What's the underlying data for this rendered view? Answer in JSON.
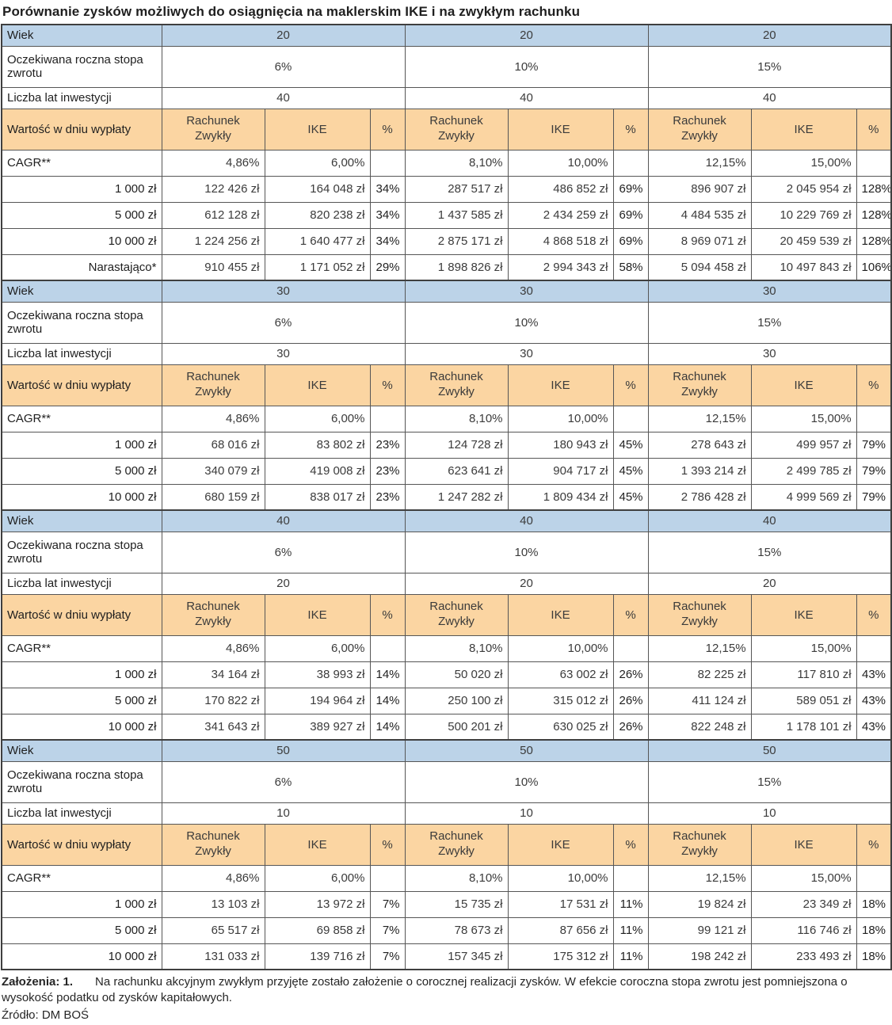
{
  "title": "Porównanie zysków możliwych do osiągnięcia na maklerskim IKE i na zwykłym rachunku",
  "colors": {
    "blue_header": "#BCD3E8",
    "orange_header": "#FBD5A2"
  },
  "labels": {
    "wiek": "Wiek",
    "stopa": "Oczekiwana roczna stopa zwrotu",
    "lata": "Liczba lat inwestycji",
    "wartosc": "Wartość w dniu wypłaty",
    "rachunek": "Rachunek\nZwykły",
    "ike": "IKE",
    "pct": "%",
    "cagr": "CAGR**"
  },
  "sections": [
    {
      "wiek": "20",
      "stopy": [
        "6%",
        "10%",
        "15%"
      ],
      "lata": [
        "40",
        "40",
        "40"
      ],
      "cagr": [
        [
          "4,86%",
          "6,00%"
        ],
        [
          "8,10%",
          "10,00%"
        ],
        [
          "12,15%",
          "15,00%"
        ]
      ],
      "rows": [
        {
          "label": "1 000 zł",
          "cells": [
            [
              "122 426 zł",
              "164 048 zł",
              "34%"
            ],
            [
              "287 517 zł",
              "486 852 zł",
              "69%"
            ],
            [
              "896 907 zł",
              "2 045 954 zł",
              "128%"
            ]
          ]
        },
        {
          "label": "5 000 zł",
          "cells": [
            [
              "612 128 zł",
              "820 238 zł",
              "34%"
            ],
            [
              "1 437 585 zł",
              "2 434 259 zł",
              "69%"
            ],
            [
              "4 484 535 zł",
              "10 229 769 zł",
              "128%"
            ]
          ]
        },
        {
          "label": "10 000 zł",
          "cells": [
            [
              "1 224 256 zł",
              "1 640 477 zł",
              "34%"
            ],
            [
              "2 875 171 zł",
              "4 868 518 zł",
              "69%"
            ],
            [
              "8 969 071 zł",
              "20 459 539 zł",
              "128%"
            ]
          ]
        },
        {
          "label": "Narastająco*",
          "cells": [
            [
              "910 455 zł",
              "1 171 052 zł",
              "29%"
            ],
            [
              "1 898 826 zł",
              "2 994 343 zł",
              "58%"
            ],
            [
              "5 094 458 zł",
              "10 497 843 zł",
              "106%"
            ]
          ]
        }
      ]
    },
    {
      "wiek": "30",
      "stopy": [
        "6%",
        "10%",
        "15%"
      ],
      "lata": [
        "30",
        "30",
        "30"
      ],
      "cagr": [
        [
          "4,86%",
          "6,00%"
        ],
        [
          "8,10%",
          "10,00%"
        ],
        [
          "12,15%",
          "15,00%"
        ]
      ],
      "rows": [
        {
          "label": "1 000 zł",
          "cells": [
            [
              "68 016 zł",
              "83 802 zł",
              "23%"
            ],
            [
              "124 728 zł",
              "180 943 zł",
              "45%"
            ],
            [
              "278 643 zł",
              "499 957 zł",
              "79%"
            ]
          ]
        },
        {
          "label": "5 000 zł",
          "cells": [
            [
              "340 079 zł",
              "419 008 zł",
              "23%"
            ],
            [
              "623 641 zł",
              "904 717 zł",
              "45%"
            ],
            [
              "1 393 214 zł",
              "2 499 785 zł",
              "79%"
            ]
          ]
        },
        {
          "label": "10 000 zł",
          "cells": [
            [
              "680 159 zł",
              "838 017 zł",
              "23%"
            ],
            [
              "1 247 282 zł",
              "1 809 434 zł",
              "45%"
            ],
            [
              "2 786 428 zł",
              "4 999 569 zł",
              "79%"
            ]
          ]
        }
      ]
    },
    {
      "wiek": "40",
      "stopy": [
        "6%",
        "10%",
        "15%"
      ],
      "lata": [
        "20",
        "20",
        "20"
      ],
      "cagr": [
        [
          "4,86%",
          "6,00%"
        ],
        [
          "8,10%",
          "10,00%"
        ],
        [
          "12,15%",
          "15,00%"
        ]
      ],
      "rows": [
        {
          "label": "1 000 zł",
          "cells": [
            [
              "34 164 zł",
              "38 993 zł",
              "14%"
            ],
            [
              "50 020 zł",
              "63 002 zł",
              "26%"
            ],
            [
              "82 225 zł",
              "117 810 zł",
              "43%"
            ]
          ]
        },
        {
          "label": "5 000 zł",
          "cells": [
            [
              "170 822 zł",
              "194 964 zł",
              "14%"
            ],
            [
              "250 100 zł",
              "315 012 zł",
              "26%"
            ],
            [
              "411 124 zł",
              "589 051 zł",
              "43%"
            ]
          ]
        },
        {
          "label": "10 000 zł",
          "cells": [
            [
              "341 643 zł",
              "389 927 zł",
              "14%"
            ],
            [
              "500 201 zł",
              "630 025 zł",
              "26%"
            ],
            [
              "822 248 zł",
              "1 178 101 zł",
              "43%"
            ]
          ]
        }
      ]
    },
    {
      "wiek": "50",
      "stopy": [
        "6%",
        "10%",
        "15%"
      ],
      "lata": [
        "10",
        "10",
        "10"
      ],
      "cagr": [
        [
          "4,86%",
          "6,00%"
        ],
        [
          "8,10%",
          "10,00%"
        ],
        [
          "12,15%",
          "15,00%"
        ]
      ],
      "rows": [
        {
          "label": "1 000 zł",
          "cells": [
            [
              "13 103 zł",
              "13 972 zł",
              "7%"
            ],
            [
              "15 735 zł",
              "17 531 zł",
              "11%"
            ],
            [
              "19 824 zł",
              "23 349 zł",
              "18%"
            ]
          ]
        },
        {
          "label": "5 000 zł",
          "cells": [
            [
              "65 517 zł",
              "69 858 zł",
              "7%"
            ],
            [
              "78 673 zł",
              "87 656 zł",
              "11%"
            ],
            [
              "99 121 zł",
              "116 746 zł",
              "18%"
            ]
          ]
        },
        {
          "label": "10 000 zł",
          "cells": [
            [
              "131 033 zł",
              "139 716 zł",
              "7%"
            ],
            [
              "157 345 zł",
              "175 312 zł",
              "11%"
            ],
            [
              "198 242 zł",
              "233 493 zł",
              "18%"
            ]
          ]
        }
      ]
    }
  ],
  "footer": {
    "assumptions_label": "Założenia: 1.",
    "assumptions_text": "Na rachunku akcyjnym zwykłym przyjęte zostało założenie o corocznej realizacji zysków. W efekcie coroczna stopa zwrotu jest pomniejszona o wysokość podatku od zysków kapitałowych.",
    "source": "Źródło: DM BOŚ"
  }
}
